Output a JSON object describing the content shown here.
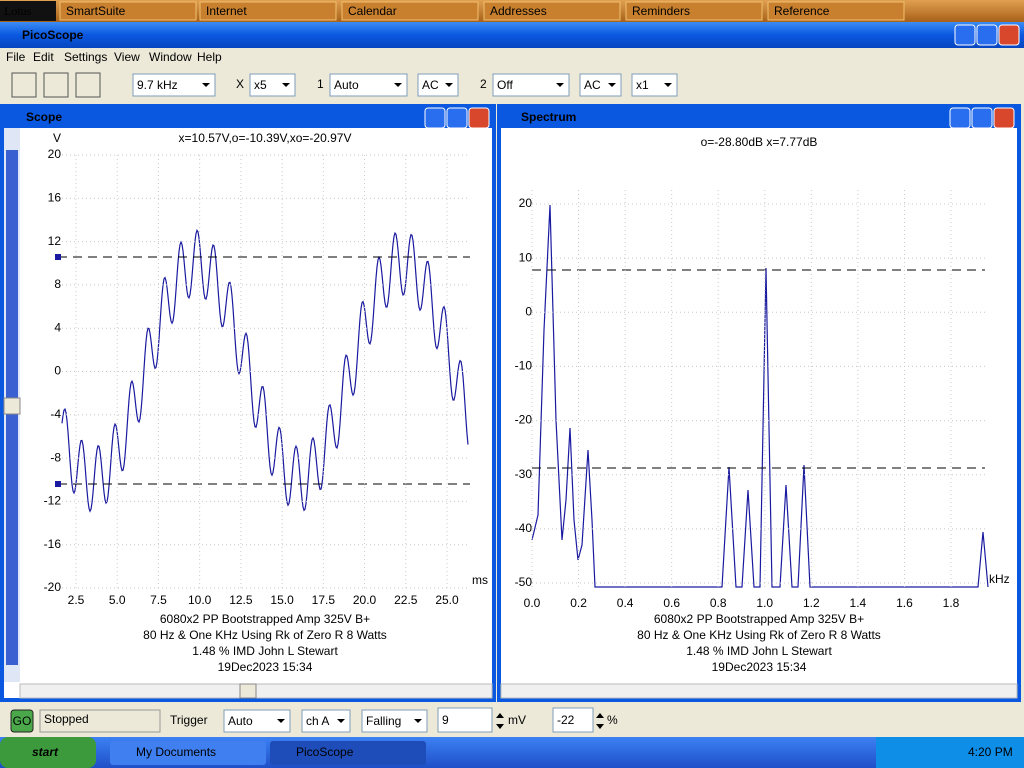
{
  "lotus_bar": {
    "brand": "Lotus",
    "items": [
      "SmartSuite",
      "Internet",
      "Calendar",
      "Addresses",
      "Reminders",
      "Reference"
    ]
  },
  "window": {
    "title": "PicoScope"
  },
  "menu": [
    "File",
    "Edit",
    "Settings",
    "View",
    "Window",
    "Help"
  ],
  "toolbar": {
    "timebase": "9.7 kHz",
    "zoom_symbol": "X",
    "zoom": "x5",
    "ch1_label": "1",
    "ch1_range": "Auto",
    "ch1_coupling": "AC",
    "ch2_label": "2",
    "ch2_range": "Off",
    "ch2_coupling": "AC",
    "ch2_multiplier": "x1"
  },
  "scope": {
    "title": "Scope",
    "y_unit": "V",
    "readout": "x=10.57V,o=-10.39V,xo=-20.97V",
    "yticks": [
      "20",
      "16",
      "12",
      "8",
      "4",
      "0",
      "-4",
      "-8",
      "-12",
      "-16",
      "-20"
    ],
    "xticks": [
      "2.5",
      "5.0",
      "7.5",
      "10.0",
      "12.5",
      "15.0",
      "17.5",
      "20.0",
      "22.5",
      "25.0"
    ],
    "x_unit": "ms",
    "caption": [
      "6080x2 PP Bootstrapped Amp 325V B+",
      "80 Hz & One KHz Using Rk of Zero R 8 Watts",
      "1.48 % IMD John L Stewart",
      "19Dec2023  15:34"
    ]
  },
  "spectrum": {
    "title": "Spectrum",
    "readout": "o=-28.80dB  x=7.77dB",
    "yticks": [
      "20",
      "10",
      "0",
      "-10",
      "-20",
      "-30",
      "-40",
      "-50"
    ],
    "xticks": [
      "0.0",
      "0.2",
      "0.4",
      "0.6",
      "0.8",
      "1.0",
      "1.2",
      "1.4",
      "1.6",
      "1.8"
    ],
    "x_unit": "kHz",
    "caption": [
      "6080x2 PP Bootstrapped Amp 325V B+",
      "80 Hz & One KHz Using Rk of Zero R 8 Watts",
      "1.48 % IMD John L Stewart",
      "19Dec2023  15:34"
    ]
  },
  "status": {
    "run_icon": "GO",
    "state": "Stopped",
    "trigger_label": "Trigger",
    "trigger_mode": "Auto",
    "channel": "ch A",
    "direction": "Falling",
    "level": "9",
    "level_unit": "mV",
    "delay": "-22",
    "delay_unit": "%"
  },
  "taskbar": {
    "start": "start",
    "tasks": [
      "My Documents",
      "PicoScope"
    ],
    "clock": "4:20 PM"
  }
}
